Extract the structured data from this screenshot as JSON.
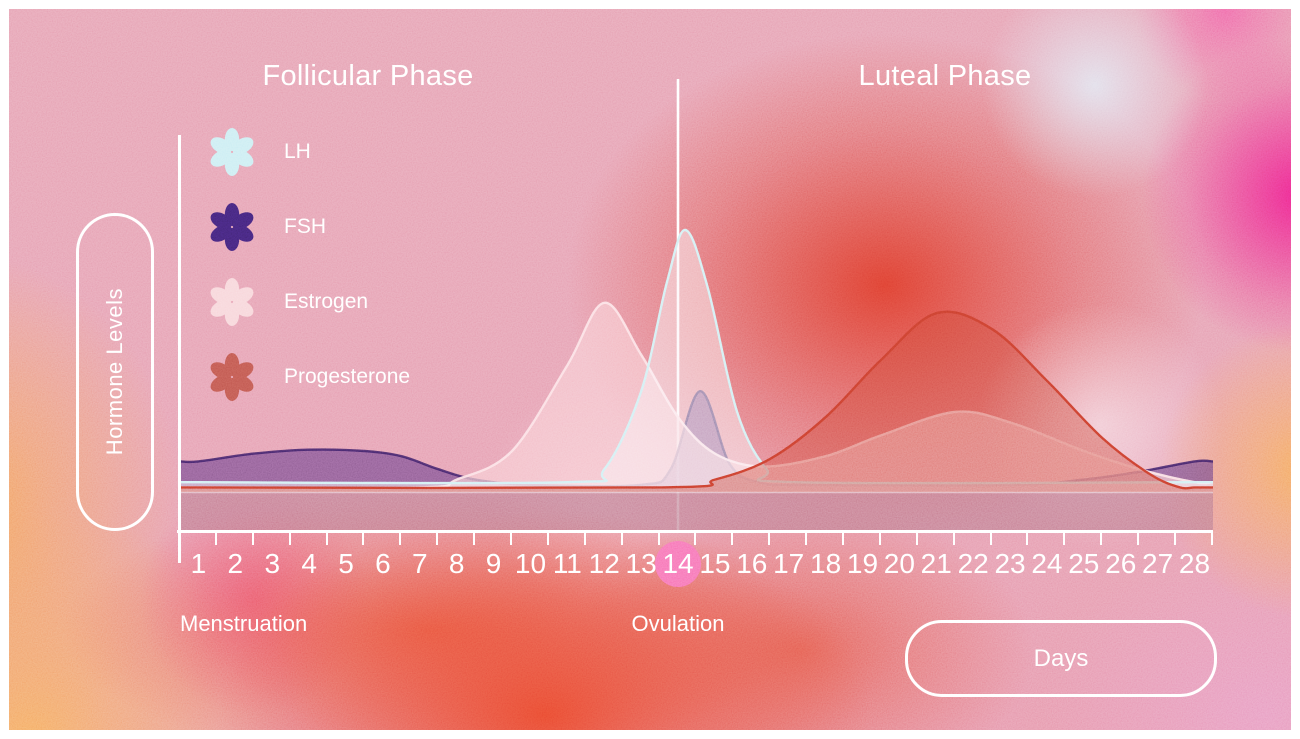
{
  "titles": {
    "follicular": "Follicular Phase",
    "luteal": "Luteal Phase"
  },
  "y_axis": {
    "label": "Hormone Levels"
  },
  "x_axis": {
    "label": "Days",
    "days": [
      "1",
      "2",
      "3",
      "4",
      "5",
      "6",
      "7",
      "8",
      "9",
      "10",
      "11",
      "12",
      "13",
      "14",
      "15",
      "16",
      "17",
      "18",
      "19",
      "20",
      "21",
      "22",
      "23",
      "24",
      "25",
      "26",
      "27",
      "28"
    ],
    "highlighted_day": "14",
    "highlight_color": "#f878b8"
  },
  "annotations": {
    "menstruation": "Menstruation",
    "ovulation": "Ovulation"
  },
  "legend": {
    "items": [
      {
        "label": "LH",
        "color": "#cdeef3",
        "icon": "flower-icon"
      },
      {
        "label": "FSH",
        "color": "#45277c",
        "icon": "flower-icon"
      },
      {
        "label": "Estrogen",
        "color": "#f8d7db",
        "icon": "flower-icon"
      },
      {
        "label": "Progesterone",
        "color": "#c25a52",
        "icon": "flower-icon"
      }
    ]
  },
  "chart_data": {
    "type": "area",
    "title": "Hormone levels across the 28-day menstrual cycle",
    "xlabel": "Days",
    "ylabel": "Hormone Levels",
    "x_range": [
      1,
      28
    ],
    "y_range": [
      0,
      100
    ],
    "grid": false,
    "legend_position": "upper-left",
    "ovulation_day": 14,
    "phases": [
      {
        "name": "Follicular Phase",
        "days": [
          1,
          14
        ]
      },
      {
        "name": "Luteal Phase",
        "days": [
          14,
          28
        ]
      }
    ],
    "series": [
      {
        "name": "LH",
        "stroke": "#d4f0f4",
        "fill": "rgba(252,243,247,0.5)",
        "points": [
          [
            1,
            3
          ],
          [
            11,
            3
          ],
          [
            12,
            8
          ],
          [
            13,
            38
          ],
          [
            13.7,
            80
          ],
          [
            14.2,
            100
          ],
          [
            14.8,
            78
          ],
          [
            15.6,
            30
          ],
          [
            16.4,
            8
          ],
          [
            17.2,
            3
          ],
          [
            28,
            3
          ]
        ]
      },
      {
        "name": "FSH",
        "stroke": "rgba(58,30,100,0.85)",
        "fill": "rgba(84,48,132,0.55)",
        "points": [
          [
            1,
            11
          ],
          [
            2.5,
            14
          ],
          [
            4,
            15.5
          ],
          [
            5.5,
            15
          ],
          [
            6.5,
            13
          ],
          [
            7.5,
            8
          ],
          [
            8.5,
            4
          ],
          [
            10,
            2
          ],
          [
            13,
            2
          ],
          [
            13.8,
            8
          ],
          [
            14.6,
            38
          ],
          [
            15.4,
            10
          ],
          [
            16.2,
            3
          ],
          [
            17.5,
            2
          ],
          [
            23,
            2
          ],
          [
            25,
            4
          ],
          [
            26.5,
            7
          ],
          [
            28,
            11
          ]
        ]
      },
      {
        "name": "Estrogen",
        "stroke": "rgba(252,226,230,0.95)",
        "fill": "rgba(249,206,212,0.68)",
        "points": [
          [
            1,
            1
          ],
          [
            7,
            1
          ],
          [
            8,
            4
          ],
          [
            9.5,
            15
          ],
          [
            11,
            48
          ],
          [
            12,
            72
          ],
          [
            13,
            52
          ],
          [
            14,
            28
          ],
          [
            15,
            14
          ],
          [
            16.3,
            9
          ],
          [
            18,
            13
          ],
          [
            19.5,
            21
          ],
          [
            21.5,
            30
          ],
          [
            23,
            26
          ],
          [
            25,
            15
          ],
          [
            26.5,
            8
          ],
          [
            28,
            3
          ]
        ]
      },
      {
        "name": "Progesterone",
        "stroke": "#cb4030",
        "fill": "rgba(206,72,55,0.45)",
        "points": [
          [
            1,
            1
          ],
          [
            13.5,
            1
          ],
          [
            15,
            4
          ],
          [
            16.5,
            12
          ],
          [
            18,
            28
          ],
          [
            19.5,
            50
          ],
          [
            21,
            68
          ],
          [
            22.5,
            62
          ],
          [
            24,
            42
          ],
          [
            25.5,
            20
          ],
          [
            26.8,
            6
          ],
          [
            27.6,
            1
          ],
          [
            28,
            1
          ]
        ]
      }
    ],
    "baseline_band_color": "rgba(190,125,145,0.7)"
  }
}
